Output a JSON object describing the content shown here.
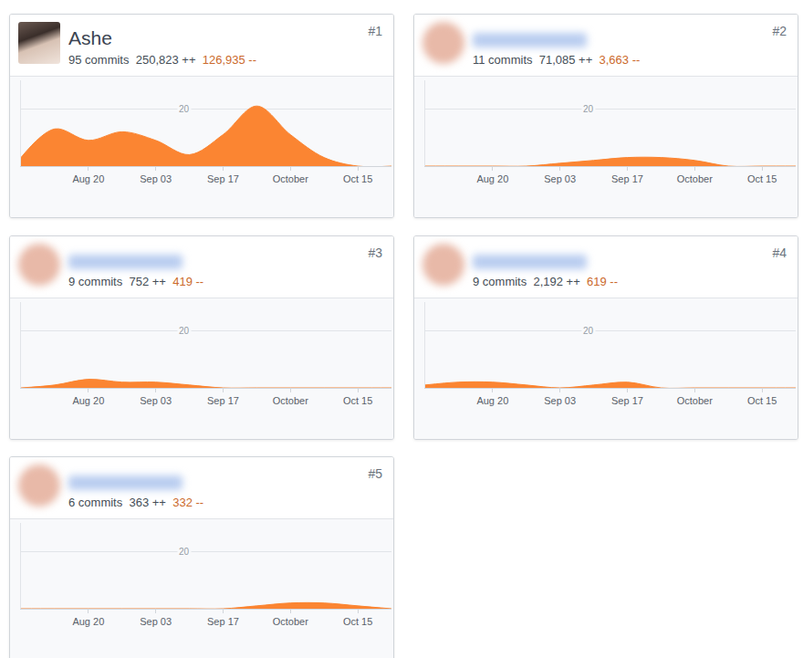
{
  "chart_data": [
    {
      "type": "area",
      "title": "Ashe",
      "annotations": [
        "#1",
        "95 commits",
        "250,823 ++",
        "126,935 --"
      ],
      "categories": [
        null,
        null,
        "Aug 20",
        null,
        "Sep 03",
        null,
        "Sep 17",
        null,
        "October",
        null,
        "Oct 15",
        null
      ],
      "values": [
        3,
        13,
        9,
        12,
        9,
        4,
        11,
        21,
        11,
        3,
        0,
        0
      ],
      "color": "#fb8532",
      "ylim": [
        0,
        30
      ],
      "yticks": [
        20
      ],
      "grid": true
    },
    {
      "type": "area",
      "annotations": [
        "#2",
        "11 commits",
        "71,085 ++",
        "3,663 --"
      ],
      "categories": [
        null,
        null,
        "Aug 20",
        null,
        "Sep 03",
        null,
        "Sep 17",
        null,
        "October",
        null,
        "Oct 15",
        null
      ],
      "values": [
        0,
        0,
        0,
        0,
        1,
        2,
        3,
        3,
        2,
        0,
        0,
        0
      ],
      "color": "#fb8532",
      "ylim": [
        0,
        30
      ],
      "yticks": [
        20
      ],
      "grid": true
    },
    {
      "type": "area",
      "annotations": [
        "#3",
        "9 commits",
        "752 ++",
        "419 --"
      ],
      "categories": [
        null,
        null,
        "Aug 20",
        null,
        "Sep 03",
        null,
        "Sep 17",
        null,
        "October",
        null,
        "Oct 15",
        null
      ],
      "values": [
        0,
        1,
        3,
        2,
        2,
        1,
        0,
        0,
        0,
        0,
        0,
        0
      ],
      "color": "#fb8532",
      "ylim": [
        0,
        30
      ],
      "yticks": [
        20
      ],
      "grid": true
    },
    {
      "type": "area",
      "annotations": [
        "#4",
        "9 commits",
        "2,192 ++",
        "619 --"
      ],
      "categories": [
        null,
        null,
        "Aug 20",
        null,
        "Sep 03",
        null,
        "Sep 17",
        null,
        "October",
        null,
        "Oct 15",
        null
      ],
      "values": [
        1,
        2,
        2,
        1,
        0,
        1,
        2,
        0,
        0,
        0,
        0,
        0
      ],
      "color": "#fb8532",
      "ylim": [
        0,
        30
      ],
      "yticks": [
        20
      ],
      "grid": true
    },
    {
      "type": "area",
      "annotations": [
        "#5",
        "6 commits",
        "363 ++",
        "332 --"
      ],
      "categories": [
        null,
        null,
        "Aug 20",
        null,
        "Sep 03",
        null,
        "Sep 17",
        null,
        "October",
        null,
        "Oct 15",
        null
      ],
      "values": [
        0,
        0,
        0,
        0,
        0,
        0,
        0,
        1,
        2,
        2,
        1,
        0
      ],
      "color": "#fb8532",
      "ylim": [
        0,
        30
      ],
      "yticks": [
        20
      ],
      "grid": true
    }
  ]
}
